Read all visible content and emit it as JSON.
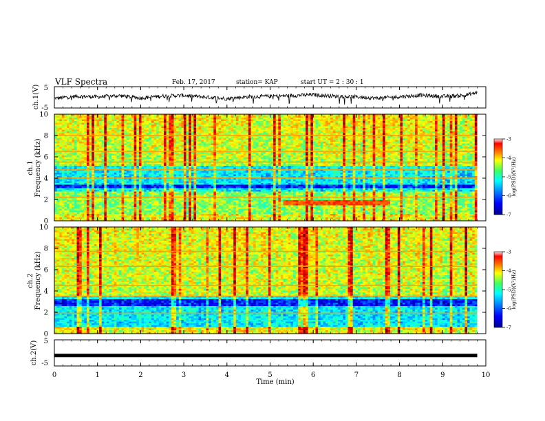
{
  "header": {
    "title": "VLF Spectra",
    "date": "Feb. 17, 2017",
    "station": "station= KAP",
    "start_ut": "start  UT =  2 : 30 : 1"
  },
  "chart_data": [
    {
      "type": "line",
      "panel": "ch1-waveform",
      "ylabel": "ch.1(V)",
      "ylim": [
        -5,
        5
      ],
      "yticks": [
        "5",
        "-5"
      ],
      "xlim": [
        0,
        10
      ],
      "series": [
        {
          "x": [
            0,
            0.5,
            1,
            1.5,
            2,
            2.5,
            3,
            3.5,
            4,
            4.5,
            5,
            5.5,
            6,
            6.5,
            7,
            7.5,
            8,
            8.5,
            9,
            9.5,
            9.8
          ],
          "values": [
            -0.5,
            0.5,
            0.2,
            0.8,
            -0.3,
            0.6,
            0.9,
            0.1,
            -0.6,
            0.3,
            0.5,
            0.8,
            1.2,
            0.6,
            0.2,
            -0.4,
            0.3,
            1.0,
            0.4,
            0.9,
            2.2
          ]
        }
      ],
      "color": "#000000"
    },
    {
      "type": "heatmap",
      "panel": "ch1-spectrogram",
      "label": "ch.1",
      "ylabel": "Frequency  (kHz)",
      "ylim": [
        0,
        10
      ],
      "yticks": [
        "0",
        "2",
        "4",
        "6",
        "8",
        "10"
      ],
      "xlim": [
        0,
        10
      ],
      "time_extent": [
        0,
        9.8
      ],
      "features": {
        "low_band_khz": [
          2.7,
          5.2
        ],
        "deep_band_khz": [
          3.0,
          3.4
        ],
        "hum_lines_khz": [
          2.2,
          4.0,
          4.8,
          5.5,
          6.5,
          8.0
        ],
        "event": {
          "t": [
            5.3,
            7.8
          ],
          "khz": [
            1.4,
            2.0
          ]
        }
      },
      "colorbar": {
        "label": "log(PSD)(V²/Hz)",
        "range": [
          -7,
          -3
        ],
        "ticks": [
          "-3",
          "-4",
          "-5",
          "-6",
          "-7"
        ]
      }
    },
    {
      "type": "heatmap",
      "panel": "ch2-spectrogram",
      "label": "ch.2",
      "ylabel": "Frequency  (kHz)",
      "ylim": [
        0,
        10
      ],
      "yticks": [
        "0",
        "2",
        "4",
        "6",
        "8",
        "10"
      ],
      "xlim": [
        0,
        10
      ],
      "time_extent": [
        0,
        9.8
      ],
      "features": {
        "low_band_khz": [
          0.6,
          3.5
        ],
        "deep_band_khz": [
          2.6,
          3.2
        ],
        "hum_lines_khz": [
          1.9,
          3.5,
          4.5,
          6.3,
          7.7
        ],
        "event": null
      },
      "colorbar": {
        "label": "log(PSD)(V²/Hz)",
        "range": [
          -7,
          -3
        ],
        "ticks": [
          "-3",
          "-4",
          "-5",
          "-6",
          "-7"
        ]
      }
    },
    {
      "type": "line",
      "panel": "ch2-waveform",
      "ylabel": "ch.2(V)",
      "ylim": [
        -5,
        5
      ],
      "yticks": [
        "5",
        "-5"
      ],
      "xlim": [
        0,
        10
      ],
      "xlabel": "Time  (min)",
      "xticks": [
        "0",
        "1",
        "2",
        "3",
        "4",
        "5",
        "6",
        "7",
        "8",
        "9",
        "10"
      ],
      "series": [
        {
          "x": [
            0,
            9.8
          ],
          "values": [
            -1,
            -1
          ]
        }
      ],
      "color": "#000000"
    }
  ],
  "colors": {
    "colormap": [
      "#00008f",
      "#0000ff",
      "#0080ff",
      "#00ffff",
      "#40ff80",
      "#ffff00",
      "#ff8000",
      "#ff0000",
      "#800000"
    ]
  }
}
